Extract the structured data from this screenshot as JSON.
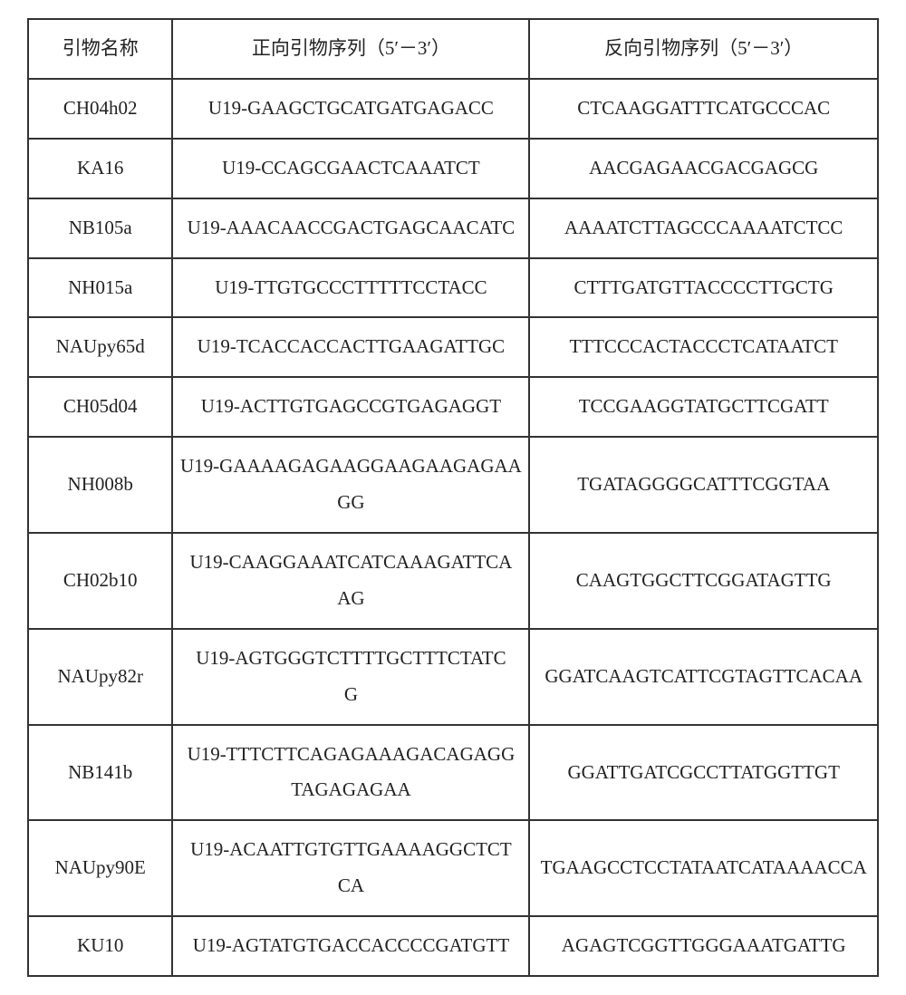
{
  "table": {
    "columns": [
      "引物名称",
      "正向引物序列（5′－3′）",
      "反向引物序列（5′－3′）"
    ],
    "rows": [
      [
        "CH04h02",
        "U19-GAAGCTGCATGATGAGACC",
        "CTCAAGGATTTCATGCCCAC"
      ],
      [
        "KA16",
        "U19-CCAGCGAACTCAAATCT",
        "AACGAGAACGACGAGCG"
      ],
      [
        "NB105a",
        "U19-AAACAACCGACTGAGCAACATC",
        "AAAATCTTAGCCCAAAATCTCC"
      ],
      [
        "NH015a",
        "U19-TTGTGCCCTTTTTCCTACC",
        "CTTTGATGTTACCCCTTGCTG"
      ],
      [
        "NAUpy65d",
        "U19-TCACCACCACTTGAAGATTGC",
        "TTTCCCACTACCCTCATAATCT"
      ],
      [
        "CH05d04",
        "U19-ACTTGTGAGCCGTGAGAGGT",
        "TCCGAAGGTATGCTTCGATT"
      ],
      [
        "NH008b",
        "U19-GAAAAGAGAAGGAAGAAGAGAA\nGG",
        "TGATAGGGGCATTTCGGTAA"
      ],
      [
        "CH02b10",
        "U19-CAAGGAAATCATCAAAGATTCA\nAG",
        "CAAGTGGCTTCGGATAGTTG"
      ],
      [
        "NAUpy82r",
        "U19-AGTGGGTCTTTTGCTTTCTATC\nG",
        "GGATCAAGTCATTCGTAGTTCACAA"
      ],
      [
        "NB141b",
        "U19-TTTCTTCAGAGAAAGACAGAGG\nTAGAGAGAA",
        "GGATTGATCGCCTTATGGTTGT"
      ],
      [
        "NAUpy90E",
        "U19-ACAATTGTGTTGAAAAGGCTCT\nCA",
        "TGAAGCCTCCTATAATCATAAAACCA"
      ],
      [
        "KU10",
        "U19-AGTATGTGACCACCCCGATGTT",
        "AGAGTCGGTTGGGAAATGATTG"
      ]
    ],
    "border_color": "#333333",
    "background_color": "#ffffff",
    "text_color": "#222222",
    "font_family": "SimSun",
    "font_size_pt": 16,
    "col_widths_pct": [
      17,
      42,
      41
    ]
  }
}
